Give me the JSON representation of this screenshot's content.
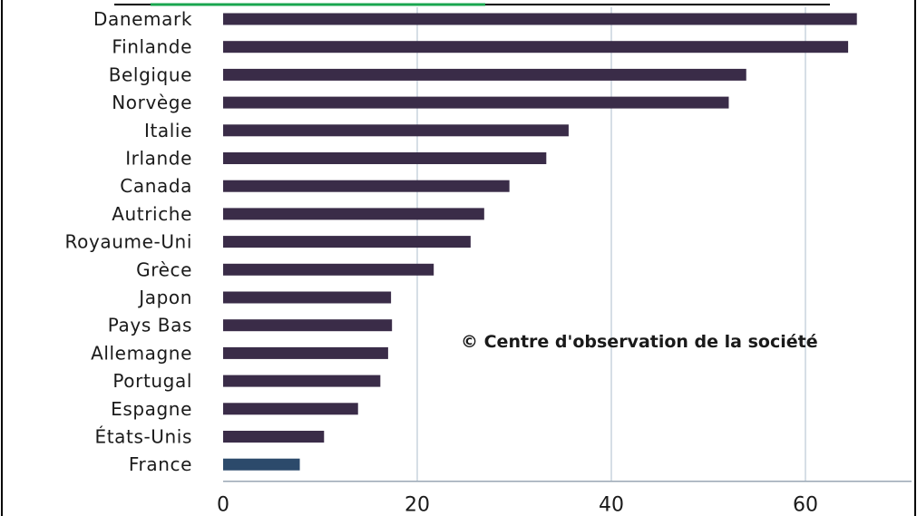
{
  "chart_data": {
    "type": "bar",
    "orientation": "horizontal",
    "categories": [
      "Danemark",
      "Finlande",
      "Belgique",
      "Norvège",
      "Italie",
      "Irlande",
      "Canada",
      "Autriche",
      "Royaume-Uni",
      "Grèce",
      "Japon",
      "Pays Bas",
      "Allemagne",
      "Portugal",
      "Espagne",
      "États-Unis",
      "France"
    ],
    "values": [
      65.3,
      64.4,
      53.9,
      52.1,
      35.6,
      33.3,
      29.5,
      26.9,
      25.5,
      21.7,
      17.3,
      17.4,
      17.0,
      16.2,
      13.9,
      10.4,
      7.9
    ],
    "highlight_category": "France",
    "xlim": [
      0,
      70
    ],
    "xticks": [
      "0",
      "20",
      "40",
      "60"
    ],
    "grid": true,
    "annotation": "© Centre d'observation de la société",
    "colors": {
      "bar": "#3a2c48",
      "highlight": "#2c4a6b",
      "grid": "#c9d3dd"
    }
  }
}
